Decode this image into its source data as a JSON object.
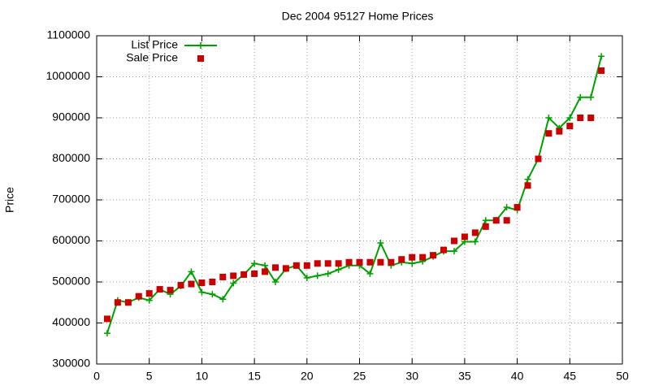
{
  "chart_data": {
    "type": "line",
    "title": "Dec 2004 95127 Home Prices",
    "y_label": "Price",
    "x": [
      1,
      2,
      3,
      4,
      5,
      6,
      7,
      8,
      9,
      10,
      11,
      12,
      13,
      14,
      15,
      16,
      17,
      18,
      19,
      20,
      21,
      22,
      23,
      24,
      25,
      26,
      27,
      28,
      29,
      30,
      31,
      32,
      33,
      34,
      35,
      36,
      37,
      38,
      39,
      40,
      41,
      42,
      43,
      44,
      45,
      46,
      47,
      48
    ],
    "series": [
      {
        "name": "List Price",
        "color": "#00a000",
        "mode": "lines+markers",
        "values": [
          375000,
          455000,
          450000,
          462000,
          455000,
          482000,
          470000,
          490000,
          525000,
          475000,
          470000,
          458000,
          497000,
          518000,
          545000,
          540000,
          500000,
          532000,
          540000,
          510000,
          515000,
          520000,
          530000,
          540000,
          540000,
          520000,
          595000,
          540000,
          548000,
          545000,
          550000,
          562000,
          575000,
          575000,
          598000,
          598000,
          650000,
          650000,
          682000,
          675000,
          750000,
          800000,
          900000,
          875000,
          900000,
          950000,
          950000,
          1050000
        ]
      },
      {
        "name": "Sale Price",
        "color": "#cc0000",
        "mode": "markers",
        "values": [
          410000,
          450000,
          450000,
          465000,
          472000,
          482000,
          480000,
          492000,
          495000,
          498000,
          500000,
          512000,
          515000,
          518000,
          520000,
          525000,
          535000,
          533000,
          540000,
          540000,
          545000,
          545000,
          545000,
          548000,
          548000,
          548000,
          548000,
          548000,
          555000,
          560000,
          560000,
          565000,
          578000,
          600000,
          610000,
          620000,
          635000,
          650000,
          650000,
          682000,
          735000,
          800000,
          862000,
          867000,
          880000,
          900000,
          900000,
          1015000
        ]
      }
    ],
    "xlim": [
      0,
      50
    ],
    "xticks": [
      0,
      5,
      10,
      15,
      20,
      25,
      30,
      35,
      40,
      45,
      50
    ],
    "ylim": [
      300000,
      1100000
    ],
    "yticks": [
      300000,
      400000,
      500000,
      600000,
      700000,
      800000,
      900000,
      1000000,
      1100000
    ],
    "grid": true,
    "legend_position": "top-left"
  }
}
